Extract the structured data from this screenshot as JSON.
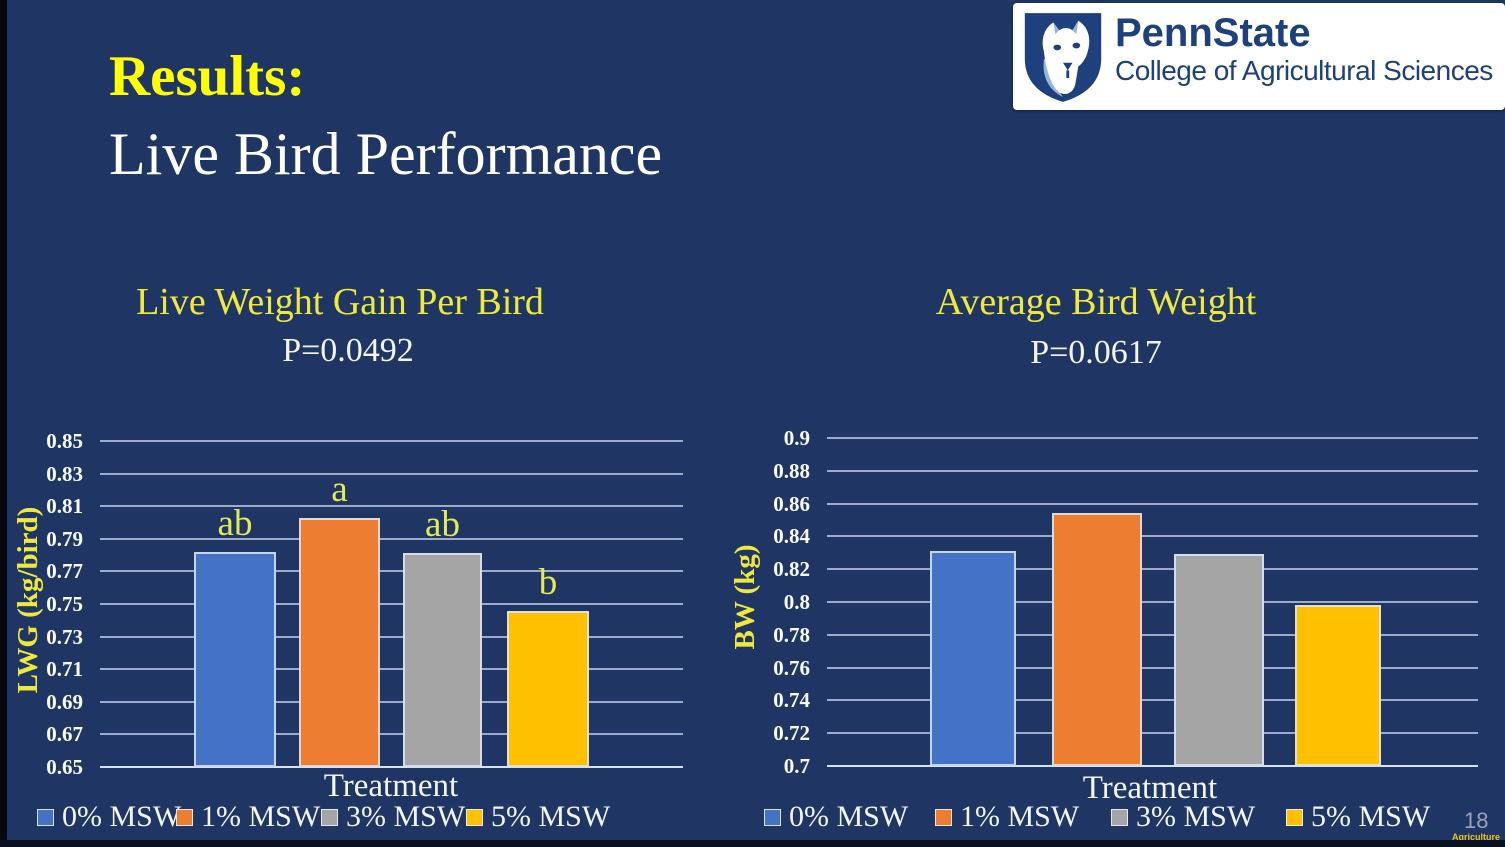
{
  "slide": {
    "title_line1": "Results:",
    "title_line2": "Live Bird Performance",
    "page_number": "18",
    "watermark": "Agriculture"
  },
  "logo": {
    "brand": "PennState",
    "subtitle": "College of Agricultural Sciences",
    "shield_icon": "nittany-lion-shield",
    "navy": "#1e407c",
    "light_blue": "#96b5e3"
  },
  "colors": {
    "background": "#1f3563",
    "results_title_yellow": "#ffff00",
    "chart_yellow": "#efe93c",
    "significance_letter_yellow": "#e4ea52",
    "gridline": "#c8d4ea",
    "text_white": "#f2f5fb"
  },
  "chart_data": [
    {
      "type": "bar",
      "title": "Live Weight Gain Per Bird",
      "subtitle": "P=0.0492",
      "xlabel": "Treatment",
      "ylabel": "LWG (kg/bird)",
      "ylim": [
        0.65,
        0.85
      ],
      "ytick_step": 0.02,
      "ytick_labels": [
        "0.85",
        "0.83",
        "0.81",
        "0.79",
        "0.77",
        "0.75",
        "0.73",
        "0.71",
        "0.69",
        "0.67",
        "0.65"
      ],
      "categories": [
        "0% MSW",
        "1% MSW",
        "3% MSW",
        "5% MSW"
      ],
      "values": [
        0.782,
        0.803,
        0.781,
        0.746
      ],
      "bar_labels": [
        "ab",
        "a",
        "ab",
        "b"
      ],
      "colors": [
        "#4472c4",
        "#ed7d31",
        "#a5a5a5",
        "#ffc000"
      ],
      "legend": [
        "0% MSW",
        "1% MSW",
        "3% MSW",
        "5% MSW"
      ],
      "legend_position": "bottom",
      "grid": true
    },
    {
      "type": "bar",
      "title": "Average Bird Weight",
      "subtitle": "P=0.0617",
      "xlabel": "Treatment",
      "ylabel": "BW (kg)",
      "ylim": [
        0.7,
        0.9
      ],
      "ytick_step": 0.02,
      "ytick_labels": [
        "0.9",
        "0.88",
        "0.86",
        "0.84",
        "0.82",
        "0.8",
        "0.78",
        "0.76",
        "0.74",
        "0.72",
        "0.7"
      ],
      "categories": [
        "0% MSW",
        "1% MSW",
        "3% MSW",
        "5% MSW"
      ],
      "values": [
        0.831,
        0.854,
        0.829,
        0.798
      ],
      "bar_labels": [
        "",
        "",
        "",
        ""
      ],
      "colors": [
        "#4472c4",
        "#ed7d31",
        "#a5a5a5",
        "#ffc000"
      ],
      "legend": [
        "0% MSW",
        "1% MSW",
        "3% MSW",
        "5% MSW"
      ],
      "legend_position": "bottom",
      "grid": true
    }
  ]
}
